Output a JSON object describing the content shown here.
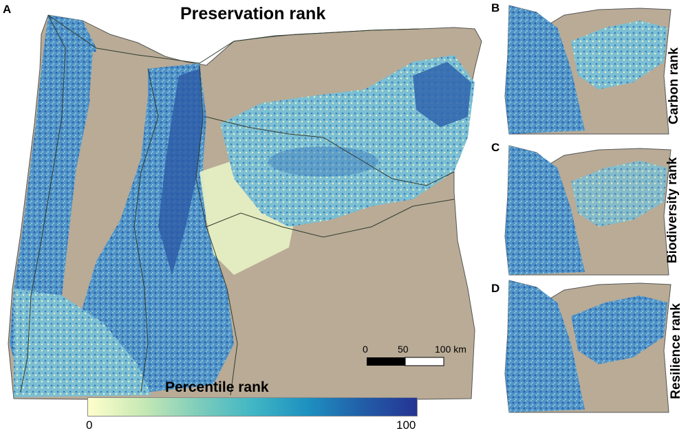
{
  "panels": {
    "a": {
      "letter": "A",
      "title": "Preservation rank"
    },
    "b": {
      "letter": "B",
      "title": "Carbon rank"
    },
    "c": {
      "letter": "C",
      "title": "Biodiversity rank"
    },
    "d": {
      "letter": "D",
      "title": "Resilience rank"
    }
  },
  "legend": {
    "title": "Percentile rank",
    "min_label": "0",
    "max_label": "100",
    "colors": [
      "#ffffcc",
      "#c7e9b4",
      "#7fcdbb",
      "#41b6c4",
      "#1d91c0",
      "#225ea8",
      "#253494"
    ]
  },
  "scale_bar": {
    "labels": [
      "0",
      "50",
      "100 km"
    ]
  },
  "colors": {
    "background_land": "#b8aa95",
    "boundary": "#2f3b2f",
    "high_rank": "#2c5fa8",
    "mid_rank": "#5aaed0",
    "low_rank": "#eef5c8"
  }
}
